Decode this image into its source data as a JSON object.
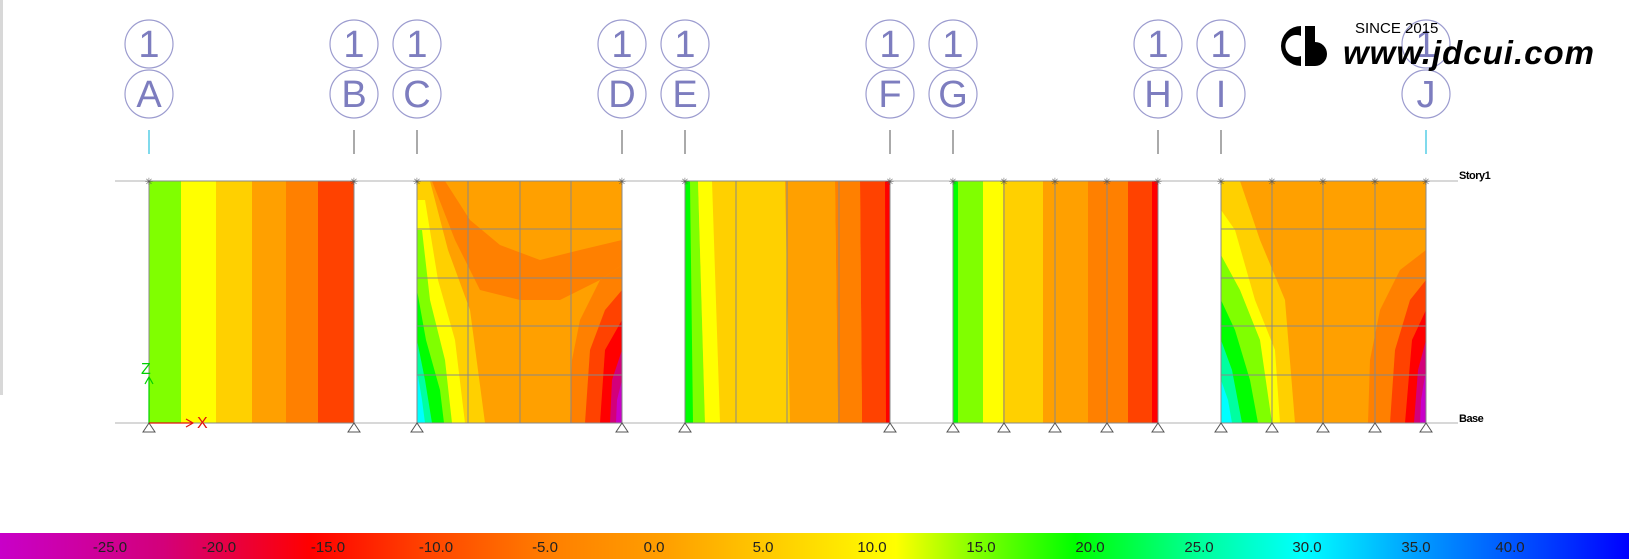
{
  "window": {
    "content": "shear wall elevation contour view"
  },
  "story_labels": [
    "Story1",
    "Base"
  ],
  "grid_bubbles": [
    {
      "number": "1",
      "letter": "A"
    },
    {
      "number": "1",
      "letter": "B"
    },
    {
      "number": "1",
      "letter": "C"
    },
    {
      "number": "1",
      "letter": "D"
    },
    {
      "number": "1",
      "letter": "E"
    },
    {
      "number": "1",
      "letter": "F"
    },
    {
      "number": "1",
      "letter": "G"
    },
    {
      "number": "1",
      "letter": "H"
    },
    {
      "number": "1",
      "letter": "I"
    },
    {
      "number": "1",
      "letter": "J"
    }
  ],
  "axes": {
    "vertical": "Z",
    "horizontal": "X"
  },
  "color_scale": {
    "labels": [
      "-25.0",
      "-20.0",
      "-15.0",
      "-10.0",
      "-5.0",
      "0.0",
      "5.0",
      "10.0",
      "15.0",
      "20.0",
      "25.0",
      "30.0",
      "35.0",
      "40.0"
    ],
    "colors": [
      "#c800c8",
      "#d3007a",
      "#ff0000",
      "#ff4200",
      "#ff8000",
      "#ffa000",
      "#ffd000",
      "#ffff00",
      "#80ff00",
      "#00ff00",
      "#00ffa0",
      "#00ffff",
      "#0090ff",
      "#0000ff"
    ]
  },
  "watermark": {
    "since": "SINCE 2015",
    "url": "www.jdcui.com"
  }
}
